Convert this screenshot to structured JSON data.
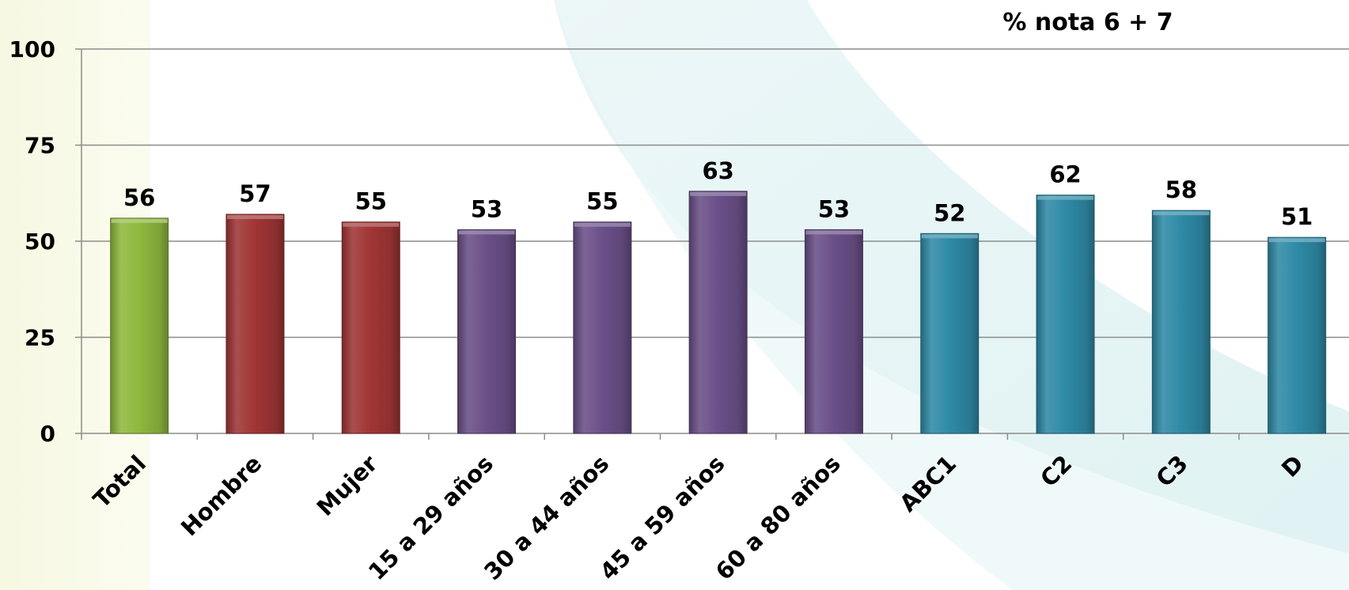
{
  "chart_data": {
    "type": "bar",
    "title": "% nota 6 + 7",
    "categories": [
      "Total",
      "Hombre",
      "Mujer",
      "15 a 29 años",
      "30 a 44 años",
      "45 a 59 años",
      "60 a 80 años",
      "ABC1",
      "C2",
      "C3",
      "D"
    ],
    "values": [
      56,
      57,
      55,
      53,
      55,
      63,
      53,
      52,
      62,
      58,
      51
    ],
    "value_labels": [
      "56",
      "57",
      "55",
      "53",
      "55",
      "63",
      "53",
      "52",
      "62",
      "58",
      "51"
    ],
    "bar_colors": [
      "#8fb83e",
      "#a03535",
      "#a03535",
      "#6a4f88",
      "#6a4f88",
      "#6a4f88",
      "#6a4f88",
      "#2f8aa6",
      "#2f8aa6",
      "#2f8aa6",
      "#2f8aa6"
    ],
    "ylim": [
      0,
      100
    ],
    "yticks": [
      0,
      25,
      50,
      75,
      100
    ],
    "ytick_labels": [
      "0",
      "25",
      "50",
      "75",
      "100"
    ],
    "grid": true,
    "xlabel": "",
    "ylabel": ""
  }
}
